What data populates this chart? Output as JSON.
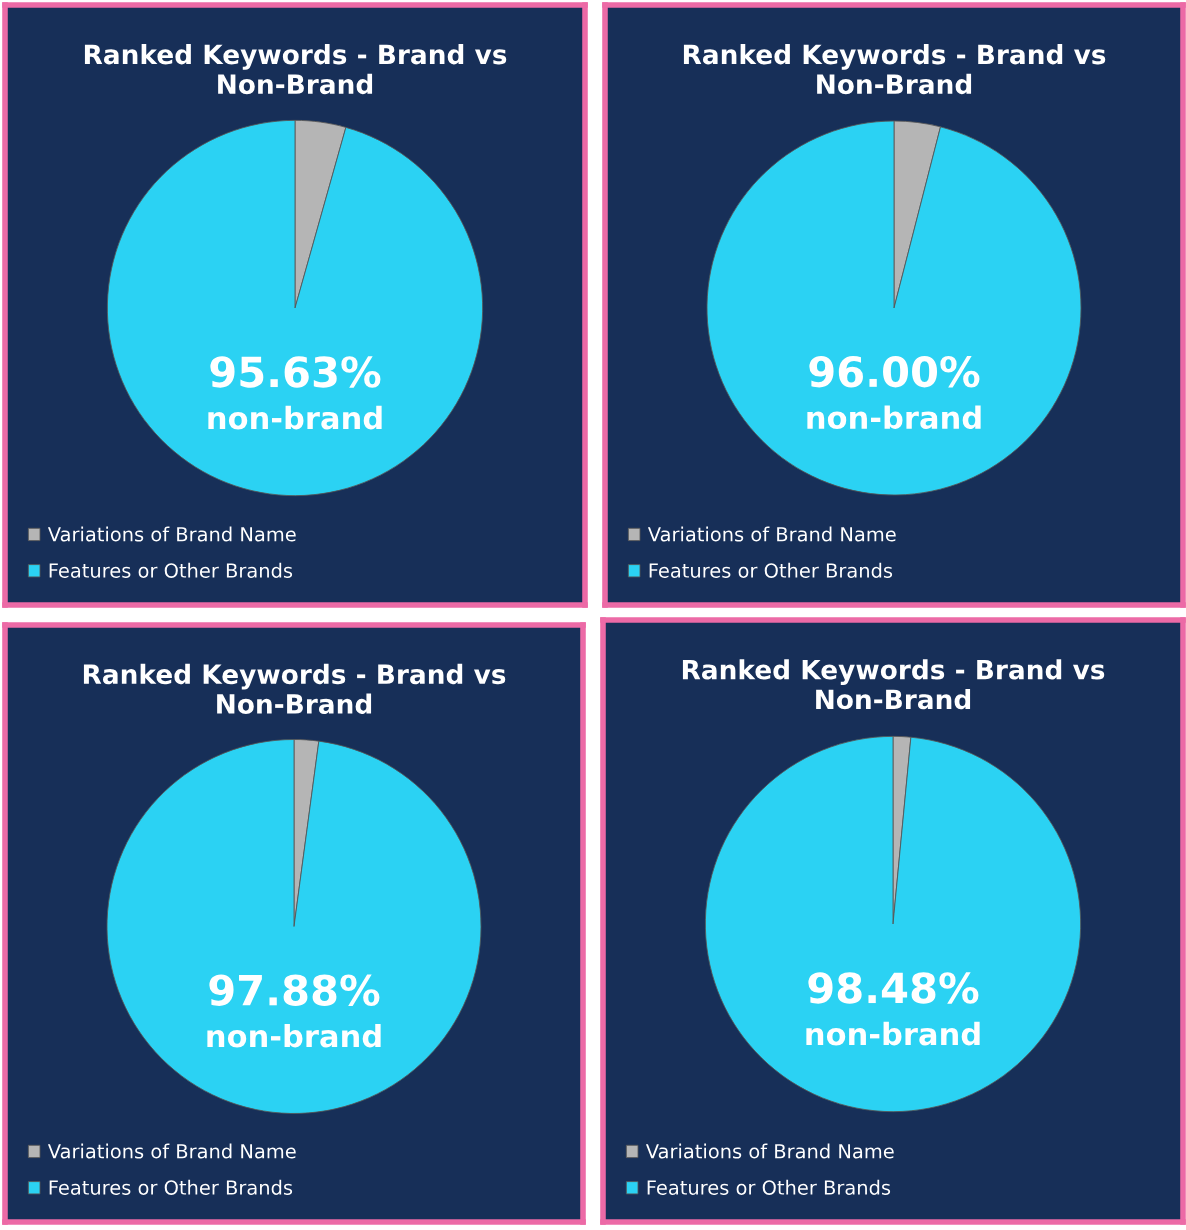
{
  "chart_data": [
    {
      "type": "pie",
      "title": "Ranked Keywords - Brand vs Non-Brand",
      "categories": [
        "Variations of Brand Name",
        "Features or Other Brands"
      ],
      "values": [
        4.37,
        95.63
      ],
      "colors": [
        "#b5b5b5",
        "#2bd2f3"
      ],
      "annotations": [
        "95.63%",
        "non-brand"
      ],
      "legend": "bottom left"
    },
    {
      "type": "pie",
      "title": "Ranked Keywords - Brand vs Non-Brand",
      "categories": [
        "Variations of Brand Name",
        "Features or Other Brands"
      ],
      "values": [
        4.0,
        96.0
      ],
      "colors": [
        "#b5b5b5",
        "#2bd2f3"
      ],
      "annotations": [
        "96.00%",
        "non-brand"
      ],
      "legend": "bottom left"
    },
    {
      "type": "pie",
      "title": "Ranked Keywords - Brand vs Non-Brand",
      "categories": [
        "Variations of Brand Name",
        "Features or Other Brands"
      ],
      "values": [
        2.12,
        97.88
      ],
      "colors": [
        "#b5b5b5",
        "#2bd2f3"
      ],
      "annotations": [
        "97.88%",
        "non-brand"
      ],
      "legend": "bottom left"
    },
    {
      "type": "pie",
      "title": "Ranked Keywords - Brand vs Non-Brand",
      "categories": [
        "Variations of Brand Name",
        "Features or Other Brands"
      ],
      "values": [
        1.52,
        98.48
      ],
      "colors": [
        "#b5b5b5",
        "#2bd2f3"
      ],
      "annotations": [
        "98.48%",
        "non-brand"
      ],
      "legend": "bottom left"
    }
  ]
}
